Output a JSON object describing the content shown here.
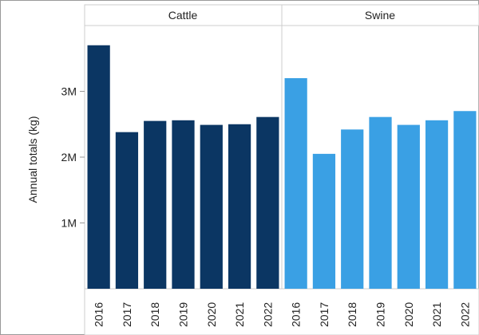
{
  "chart_data": {
    "type": "bar",
    "categories": [
      "2016",
      "2017",
      "2018",
      "2019",
      "2020",
      "2021",
      "2022"
    ],
    "ylabel": "Annual totals (kg)",
    "yticks": [
      {
        "value": 1000000,
        "label": "1M"
      },
      {
        "value": 2000000,
        "label": "2M"
      },
      {
        "value": 3000000,
        "label": "3M"
      }
    ],
    "ylim": [
      0,
      4000000
    ],
    "grid": false,
    "panels": [
      {
        "name": "Cattle",
        "color": "#0b3663",
        "values": [
          3700000,
          2380000,
          2550000,
          2560000,
          2490000,
          2500000,
          2610000
        ]
      },
      {
        "name": "Swine",
        "color": "#3aa0e4",
        "values": [
          3200000,
          2050000,
          2420000,
          2610000,
          2490000,
          2560000,
          2700000
        ]
      }
    ]
  }
}
